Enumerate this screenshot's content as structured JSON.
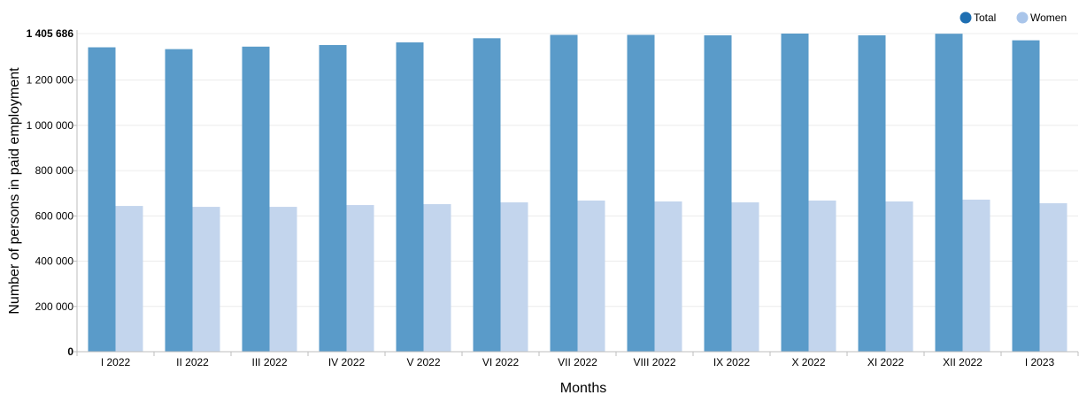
{
  "chart_data": {
    "type": "bar",
    "categories": [
      "I 2022",
      "II 2022",
      "III 2022",
      "IV 2022",
      "V 2022",
      "VI 2022",
      "VII 2022",
      "VIII 2022",
      "IX 2022",
      "X 2022",
      "XI 2022",
      "XII 2022",
      "I 2023"
    ],
    "series": [
      {
        "name": "Total",
        "color": "#5a9bc9",
        "values": [
          1345000,
          1337000,
          1348000,
          1355000,
          1367000,
          1385000,
          1400000,
          1400000,
          1398000,
          1405686,
          1398000,
          1405000,
          1376000
        ]
      },
      {
        "name": "Women",
        "color": "#c3d5ed",
        "values": [
          644000,
          640000,
          640000,
          648000,
          652000,
          660000,
          668000,
          664000,
          660000,
          668000,
          664000,
          672000,
          656000
        ]
      }
    ],
    "xlabel": "Months",
    "ylabel": "Number of persons in paid employment",
    "ylim": [
      0,
      1405686
    ],
    "yticks": [
      0,
      200000,
      400000,
      600000,
      800000,
      1000000,
      1200000
    ],
    "ytick_labels": [
      "0",
      "200 000",
      "400 000",
      "600 000",
      "800 000",
      "1 000 000",
      "1 200 000"
    ],
    "ymax_label": "1 405 686",
    "grid": true,
    "legend_position": "top-right",
    "legend_marker_colors": {
      "Total": "#1f6fb2",
      "Women": "#a9c5ea"
    }
  }
}
